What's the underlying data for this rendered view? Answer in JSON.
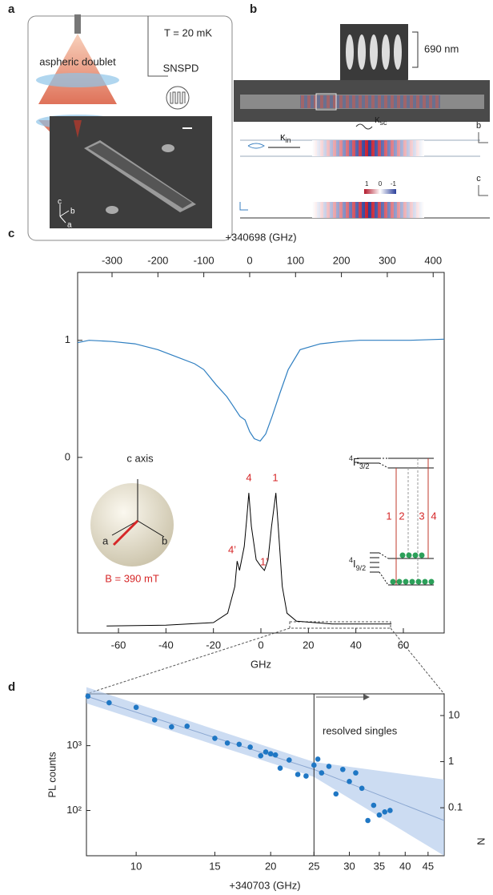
{
  "panels": {
    "a": {
      "label": "a",
      "temperature": "T = 20 mK",
      "detector": "SNSPD",
      "lens": "aspheric doublet",
      "axes": [
        "c",
        "b",
        "a"
      ]
    },
    "b": {
      "label": "b",
      "scale": "690 nm",
      "kappa_in": {
        "main": "κ",
        "sub": "in"
      },
      "kappa_sc": {
        "main": "κ",
        "sub": "sc"
      },
      "axes": [
        "b",
        "c"
      ],
      "colorbar": [
        "1",
        "0",
        "-1"
      ]
    },
    "c": {
      "label": "c",
      "peaks": [
        "4",
        "1",
        "4’",
        "1’"
      ],
      "inset": {
        "axis": "c axis",
        "a": "a",
        "b": "b",
        "field": "B = 390 mT"
      },
      "levels": {
        "upper": {
          "sup": "4",
          "main": "F",
          "sub": "3/2"
        },
        "lower": {
          "sup": "4",
          "main": "I",
          "sub": "9/2"
        }
      },
      "transitions": [
        "1",
        "2",
        "3",
        "4"
      ]
    },
    "d": {
      "label": "d",
      "annotation": "resolved singles"
    }
  },
  "chart_data": [
    {
      "type": "line",
      "xlabel": "+340698 (GHz)",
      "color": "#2f7fc1",
      "x": [
        -375,
        -350,
        -300,
        -250,
        -200,
        -160,
        -120,
        -100,
        -73,
        -50,
        -38,
        -21,
        -10,
        0,
        10,
        23,
        35,
        49,
        66,
        84,
        110,
        154,
        200,
        240,
        300,
        350,
        424
      ],
      "values": [
        0.98,
        1.0,
        0.99,
        0.97,
        0.92,
        0.86,
        0.8,
        0.75,
        0.62,
        0.52,
        0.45,
        0.35,
        0.32,
        0.22,
        0.16,
        0.14,
        0.2,
        0.35,
        0.55,
        0.75,
        0.92,
        0.97,
        0.99,
        1.0,
        1.0,
        1.0,
        1.01
      ],
      "xlim": [
        -375,
        424
      ],
      "xticks": [
        -300,
        -200,
        -100,
        0,
        100,
        200,
        300,
        400
      ],
      "ylim": [
        -1.5,
        1.58
      ],
      "yticks": [
        0,
        1
      ]
    },
    {
      "type": "line",
      "xlabel": "GHz",
      "color": "#000000",
      "x": [
        -65,
        -40,
        -20,
        -14,
        -11,
        -10,
        -9,
        -7,
        -6,
        -5.1,
        -4,
        -2,
        0,
        1.5,
        3,
        4.5,
        6.3,
        7.5,
        9,
        11,
        15,
        30,
        55
      ],
      "values": [
        0.005,
        0.01,
        0.03,
        0.1,
        0.3,
        0.49,
        0.42,
        0.6,
        0.8,
        1.0,
        0.75,
        0.5,
        0.45,
        0.42,
        0.5,
        0.75,
        1.0,
        0.7,
        0.3,
        0.1,
        0.04,
        0.02,
        0.02
      ],
      "xlim": [
        -77.2,
        77.2
      ],
      "xticks": [
        -60,
        -40,
        -20,
        0,
        20,
        40,
        60
      ],
      "ylim": [
        -0.048,
        2.65
      ]
    },
    {
      "type": "scatter",
      "xlabel": "+340703 (GHz)",
      "ylabel": "PL counts",
      "y2label": "N",
      "color": "#1f77c4",
      "xlog": true,
      "ylog": true,
      "x": [
        7.8,
        8.7,
        10,
        11,
        12,
        13,
        15,
        16,
        17,
        18,
        19,
        19.5,
        20,
        20.5,
        21,
        22,
        23,
        24,
        25,
        25.5,
        26,
        27,
        28,
        29,
        30,
        31,
        32,
        33,
        34,
        35,
        36,
        37
      ],
      "values": [
        5800,
        4600,
        3900,
        2500,
        1950,
        2000,
        1300,
        1100,
        1050,
        950,
        700,
        800,
        750,
        720,
        450,
        600,
        360,
        340,
        500,
        620,
        380,
        480,
        180,
        430,
        280,
        380,
        220,
        70,
        120,
        85,
        95,
        100
      ],
      "fit": {
        "x": [
          7.74,
          25,
          48.9
        ],
        "values": [
          5800,
          430,
          70
        ],
        "lower": [
          4500,
          330,
          20
        ],
        "upper": [
          8000,
          560,
          300
        ]
      },
      "divider_x": 25,
      "xlim": [
        7.74,
        48.9
      ],
      "xticks": [
        10,
        15,
        20,
        25,
        30,
        35,
        40,
        45
      ],
      "ylim": [
        20,
        6300
      ],
      "yticks": [
        {
          "value": 100,
          "label": "10²"
        },
        {
          "value": 1000,
          "label": "10³"
        }
      ],
      "y2lim": [
        0.0091,
        29.5
      ],
      "y2ticks": [
        0.1,
        1,
        10
      ]
    }
  ]
}
